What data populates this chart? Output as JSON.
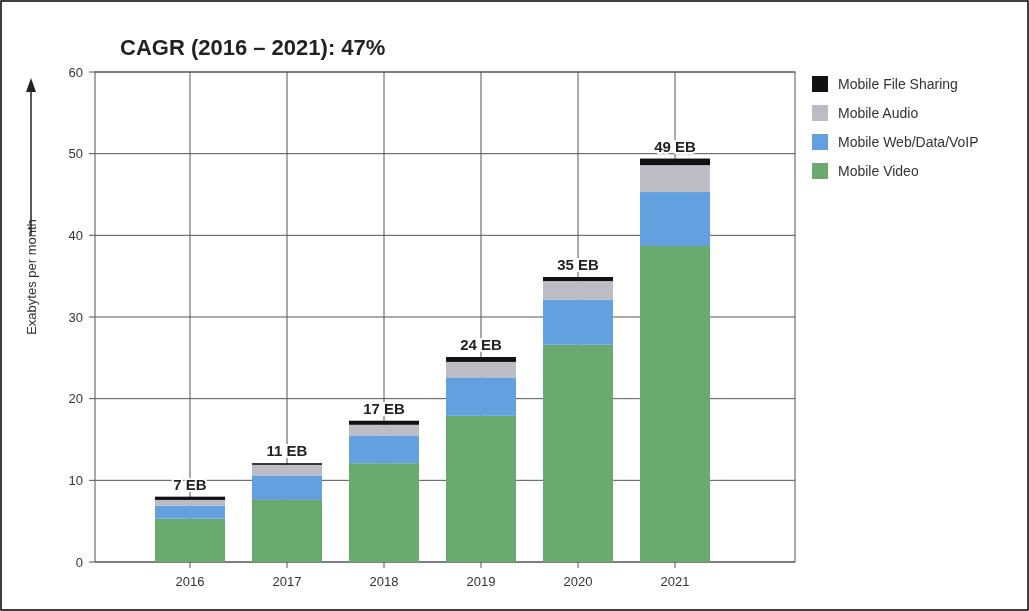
{
  "chart_data": {
    "type": "bar",
    "title": "CAGR (2016 – 2021): 47%",
    "ylabel": "Exabytes per month",
    "categories": [
      "2016",
      "2017",
      "2018",
      "2019",
      "2020",
      "2021"
    ],
    "stacked": true,
    "series": [
      {
        "name": "Mobile Video",
        "color": "#6aaa6e",
        "values": [
          5.3,
          7.6,
          12.1,
          17.9,
          26.6,
          38.7
        ]
      },
      {
        "name": "Mobile Web/Data/VoIP",
        "color": "#62a0e0",
        "values": [
          1.6,
          3.0,
          3.4,
          4.7,
          5.5,
          6.6
        ]
      },
      {
        "name": "Mobile Audio",
        "color": "#bcbcc4",
        "values": [
          0.7,
          1.3,
          1.3,
          1.9,
          2.3,
          3.3
        ]
      },
      {
        "name": "Mobile File Sharing",
        "color": "#111111",
        "values": [
          0.4,
          0.2,
          0.5,
          0.6,
          0.5,
          0.8
        ]
      }
    ],
    "totals": [
      "7 EB",
      "11 EB",
      "17 EB",
      "24 EB",
      "35 EB",
      "49 EB"
    ],
    "ylim": [
      0,
      60
    ],
    "yticks": [
      0,
      10,
      20,
      30,
      40,
      50,
      60
    ],
    "grid": true,
    "legend": "top right"
  }
}
